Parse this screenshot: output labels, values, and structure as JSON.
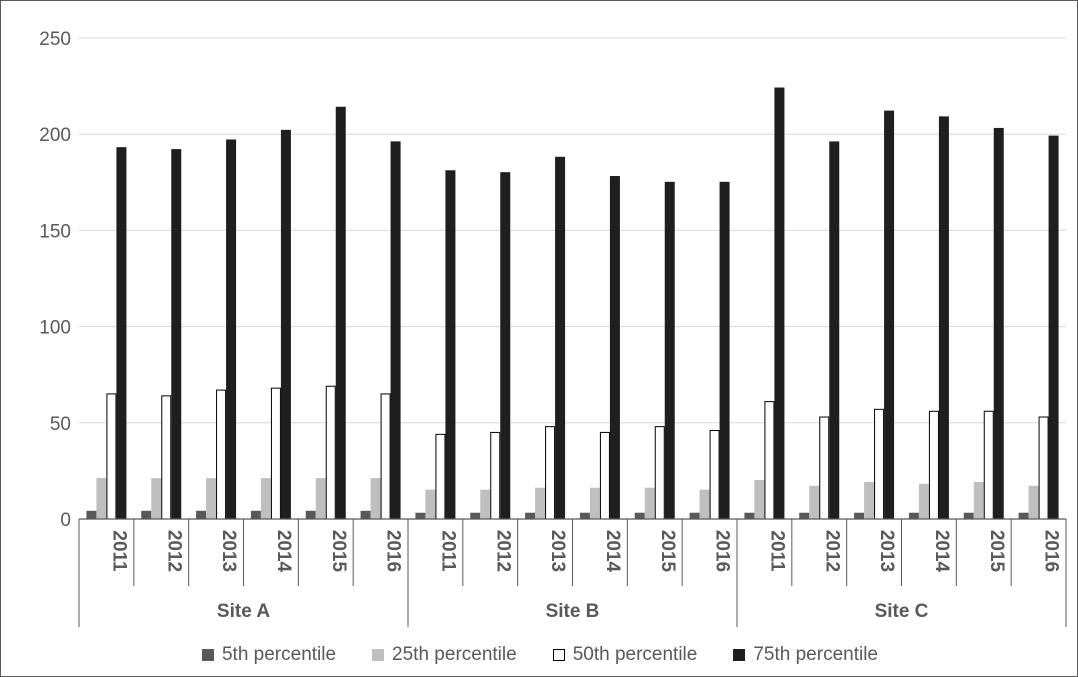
{
  "chart_data": {
    "type": "bar",
    "title": "",
    "xlabel": "",
    "ylabel": "",
    "ylim": [
      0,
      250
    ],
    "yticks": [
      0,
      50,
      100,
      150,
      200,
      250
    ],
    "grid": true,
    "legend_position": "bottom",
    "groups": [
      {
        "name": "Site A",
        "categories": [
          "2011",
          "2012",
          "2013",
          "2014",
          "2015",
          "2016"
        ]
      },
      {
        "name": "Site B",
        "categories": [
          "2011",
          "2012",
          "2013",
          "2014",
          "2015",
          "2016"
        ]
      },
      {
        "name": "Site C",
        "categories": [
          "2011",
          "2012",
          "2013",
          "2014",
          "2015",
          "2016"
        ]
      }
    ],
    "series": [
      {
        "name": "5th percentile",
        "color": "#595959",
        "stroke": "#595959",
        "values": [
          4,
          4,
          4,
          4,
          4,
          4,
          3,
          3,
          3,
          3,
          3,
          3,
          3,
          3,
          3,
          3,
          3,
          3
        ]
      },
      {
        "name": "25th percentile",
        "color": "#bfbfbf",
        "stroke": "#bfbfbf",
        "values": [
          21,
          21,
          21,
          21,
          21,
          21,
          15,
          15,
          16,
          16,
          16,
          15,
          20,
          17,
          19,
          18,
          19,
          17
        ]
      },
      {
        "name": "50th percentile",
        "color": "#ffffff",
        "stroke": "#000000",
        "values": [
          65,
          64,
          67,
          68,
          69,
          65,
          44,
          45,
          48,
          45,
          48,
          46,
          61,
          53,
          57,
          56,
          56,
          53
        ]
      },
      {
        "name": "75th percentile",
        "color": "#1f1f1f",
        "stroke": "#1f1f1f",
        "values": [
          193,
          192,
          197,
          202,
          214,
          196,
          181,
          180,
          188,
          178,
          175,
          175,
          224,
          196,
          212,
          209,
          203,
          199
        ]
      }
    ]
  }
}
